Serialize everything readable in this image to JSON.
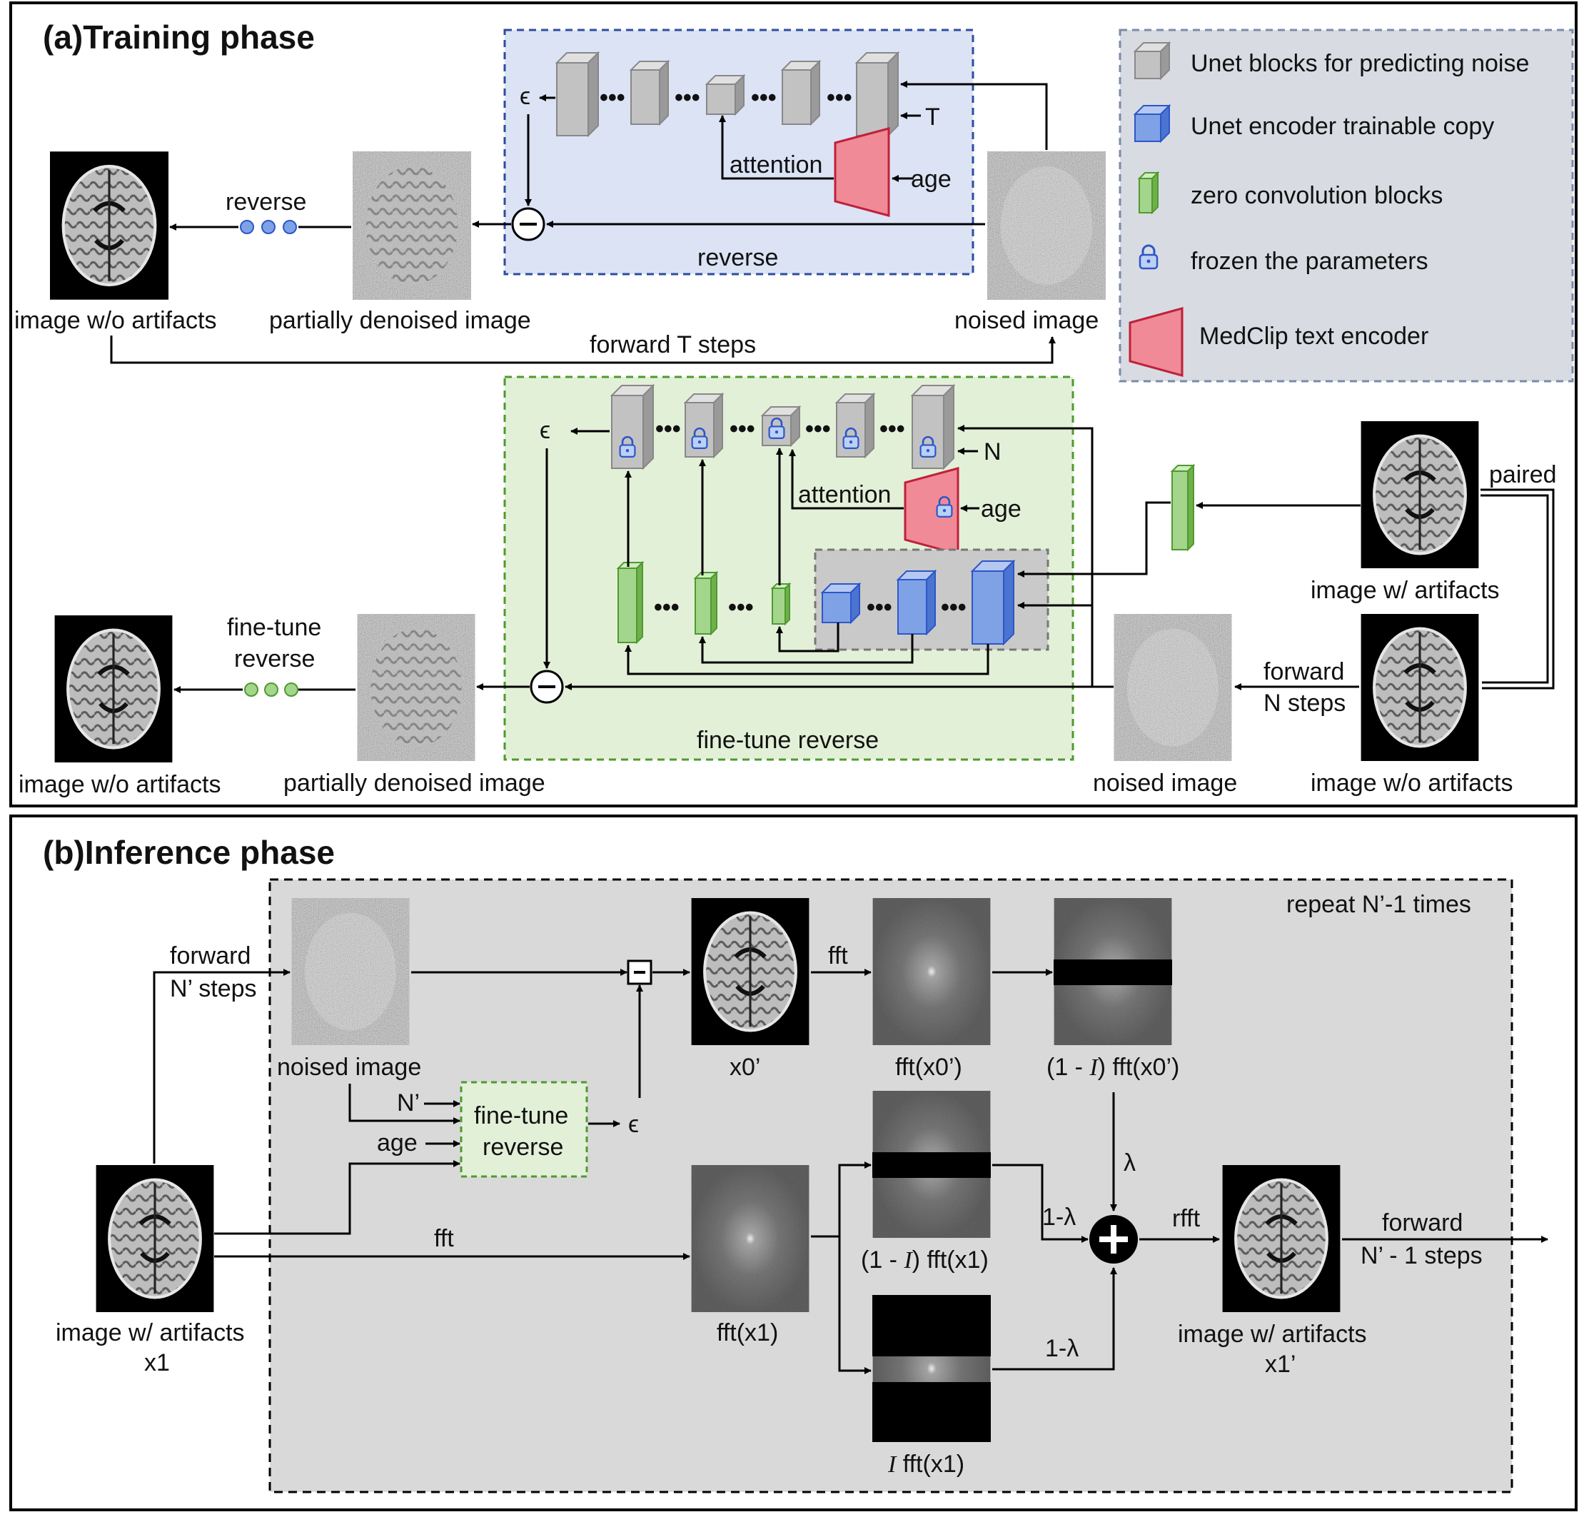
{
  "panel_a": {
    "title": "(a)Training phase",
    "legend": [
      {
        "icon": "gray-cube-icon",
        "label": "Unet blocks for predicting noise"
      },
      {
        "icon": "blue-cube-icon",
        "label": "Unet encoder trainable copy"
      },
      {
        "icon": "green-block-icon",
        "label": "zero convolution blocks"
      },
      {
        "icon": "lock-icon",
        "label": "frozen the parameters"
      },
      {
        "icon": "pink-trapezoid-icon",
        "label": "MedClip text encoder"
      }
    ],
    "top": {
      "epsilon": "ϵ",
      "t_label": "T",
      "attention": "attention",
      "age": "age",
      "reverse_box_label": "reverse",
      "reverse_arrow_label": "reverse",
      "clean_image": "image w/o artifacts",
      "partial_image": "partially denoised image",
      "noised_image": "noised image",
      "forward_label": "forward T steps",
      "dots": "•••"
    },
    "bottom": {
      "epsilon": "ϵ",
      "n_label": "N",
      "attention": "attention",
      "age": "age",
      "box_label": "fine-tune reverse",
      "finetune_line1": "fine-tune",
      "finetune_line2": "reverse",
      "clean_image": "image w/o artifacts",
      "partial_image": "partially denoised image",
      "noised_image": "noised image",
      "artifact_image": "image w/ artifacts",
      "clean_image_right": "image w/o artifacts",
      "paired": "paired",
      "forward_line1": "forward",
      "forward_line2": "N steps",
      "dots": "•••"
    }
  },
  "panel_b": {
    "title": "(b)Inference phase",
    "repeat": "repeat N’-1 times",
    "forward_in_line1": "forward",
    "forward_in_line2": "N’ steps",
    "noised_image": "noised image",
    "n_prime": "N’",
    "age": "age",
    "finetune_line1": "fine-tune",
    "finetune_line2": "reverse",
    "epsilon": "ϵ",
    "x0": "x0’",
    "fft_label_top": "fft",
    "fft_x0": "fft(x0’)",
    "masked_x0_prefix": "(1 - ",
    "masked_x0_I": "I",
    "masked_x0_suffix": ") fft(x0’)",
    "lambda": "λ",
    "fft_label_mid": "fft",
    "fft_x1": "fft(x1)",
    "masked_x1_prefix": "(1 - ",
    "masked_x1_I": "I",
    "masked_x1_suffix": ") fft(x1)",
    "one_minus_lambda_a": "1-λ",
    "one_minus_lambda_b": "1-λ",
    "i_fft_I": "I",
    "i_fft_suffix": " fft(x1)",
    "rfft": "rfft",
    "input_line1": "image w/ artifacts",
    "input_line2": "x1",
    "output_line1": "image w/ artifacts",
    "output_line2": "x1’",
    "forward_out_line1": "forward",
    "forward_out_line2": "N’ - 1 steps"
  },
  "colors": {
    "gray_block": "#c2c2c2",
    "blue_block": "#7fa2e6",
    "green_block": "#a4d58c",
    "pink_encoder": "#f08a96",
    "top_box_bg": "#dbe3f5",
    "bottom_box_bg": "#e3f0d8",
    "legend_bg": "#d8dbe2",
    "inference_bg": "#d9d9d9"
  }
}
